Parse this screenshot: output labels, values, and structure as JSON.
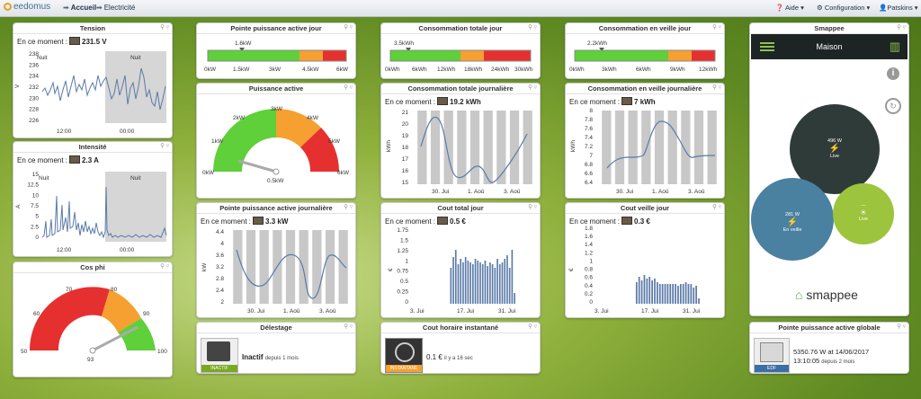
{
  "topbar": {
    "logo_text": "eedomus",
    "crumb_home": "Accueil",
    "crumb_page": "Electricité",
    "menu_help": "Aide",
    "menu_config": "Configuration",
    "menu_user": "Patskins"
  },
  "colors": {
    "green": "#5fcf3a",
    "orange": "#f5a030",
    "red": "#e63030",
    "line": "#5a7aa8",
    "bar": "#c8c8c8"
  },
  "tension": {
    "title": "Tension",
    "now_label": "En ce moment :",
    "value": "231.5 V",
    "ylabel": "V",
    "yticks": [
      "238",
      "236",
      "234",
      "232",
      "230",
      "228",
      "226"
    ],
    "xticks": [
      "12:00",
      "00:00"
    ],
    "nuit1": "Nuit",
    "nuit2": "Nuit"
  },
  "intensite": {
    "title": "Intensité",
    "now_label": "En ce moment :",
    "value": "2.3 A",
    "ylabel": "A",
    "yticks": [
      "15",
      "12.5",
      "10",
      "7.5",
      "5",
      "2.5",
      "0"
    ],
    "xticks": [
      "12:00",
      "00:00"
    ],
    "nuit1": "Nuit",
    "nuit2": "Nuit"
  },
  "cosphi": {
    "title": "Cos phi",
    "ticks": [
      "50",
      "60",
      "70",
      "80",
      "90",
      "100"
    ],
    "value": "93"
  },
  "pointe_jour": {
    "title": "Pointe puissance active jour",
    "marker": "1.6kW",
    "ticks": [
      "0kW",
      "1.5kW",
      "3kW",
      "4.5kW",
      "6kW"
    ]
  },
  "puissance_active": {
    "title": "Puissance active",
    "ticks": [
      "0kW",
      "1kW",
      "2kW",
      "3kW",
      "4kW",
      "5kW",
      "6kW"
    ],
    "value": "0.5kW"
  },
  "pointe_journaliere": {
    "title": "Pointe puissance active journalière",
    "now_label": "En ce moment :",
    "value": "3.3 kW",
    "ylabel": "kW",
    "yticks": [
      "4.4",
      "4",
      "3.6",
      "3.2",
      "2.8",
      "2.4",
      "2"
    ],
    "xticks": [
      "30. Jui",
      "1. Aoû",
      "3. Aoû"
    ]
  },
  "delestage": {
    "title": "Délestage",
    "status": "Inactif",
    "since": "depuis 1 mois",
    "badge": "INACTIF"
  },
  "conso_totale_jour": {
    "title": "Consommation totale jour",
    "marker": "3.5kWh",
    "ticks": [
      "0kWh",
      "6kWh",
      "12kWh",
      "18kWh",
      "24kWh",
      "30kWh"
    ]
  },
  "conso_totale_journaliere": {
    "title": "Consommation totale journalière",
    "now_label": "En ce moment :",
    "value": "19.2 kWh",
    "ylabel": "kWh",
    "yticks": [
      "21",
      "20",
      "19",
      "18",
      "17",
      "16",
      "15"
    ],
    "xticks": [
      "30. Jui",
      "1. Aoû",
      "3. Aoû"
    ]
  },
  "cout_total_jour": {
    "title": "Cout total jour",
    "now_label": "En ce moment :",
    "value": "0.5 €",
    "ylabel": "€",
    "yticks": [
      "1.75",
      "1.5",
      "1.25",
      "1",
      "0.75",
      "0.5",
      "0.25",
      "0"
    ],
    "xticks": [
      "3. Jui",
      "17. Jui",
      "31. Jui"
    ]
  },
  "cout_horaire": {
    "title": "Cout horaire instantané",
    "value": "0.1 €",
    "since": "il y a 16 sec",
    "badge": "INSTANTANE"
  },
  "conso_veille_jour": {
    "title": "Consommation en veille jour",
    "marker": "2.2kWh",
    "ticks": [
      "0kWh",
      "3kWh",
      "6kWh",
      "9kWh",
      "12kWh"
    ]
  },
  "conso_veille_journaliere": {
    "title": "Consommation en veille journalière",
    "now_label": "En ce moment :",
    "value": "7 kWh",
    "ylabel": "kWh",
    "yticks": [
      "8",
      "7.8",
      "7.6",
      "7.4",
      "7.2",
      "7",
      "6.8",
      "6.6",
      "6.4"
    ],
    "xticks": [
      "30. Jui",
      "1. Aoû",
      "3. Aoû"
    ]
  },
  "cout_veille_jour": {
    "title": "Cout veille jour",
    "now_label": "En ce moment :",
    "value": "0.3 €",
    "ylabel": "€",
    "yticks": [
      "1.8",
      "1.6",
      "1.4",
      "1.2",
      "1",
      "0.8",
      "0.6",
      "0.4",
      "0.2",
      "0"
    ],
    "xticks": [
      "3. Jui",
      "17. Jui",
      "31. Jui"
    ]
  },
  "smappee": {
    "title": "Smappee",
    "app_title": "Maison",
    "live_watts": "496 W",
    "live_label": "Live",
    "veille_watts": "281 W",
    "veille_label": "En veille",
    "solar_watts": "—",
    "solar_label": "Live",
    "brand": "smappee"
  },
  "pointe_globale": {
    "title": "Pointe puissance active globale",
    "line1": "5350.76 W at 14/06/2017",
    "line2": "13:10:05",
    "since": "depuis 2 mois",
    "badge": "EDF"
  }
}
